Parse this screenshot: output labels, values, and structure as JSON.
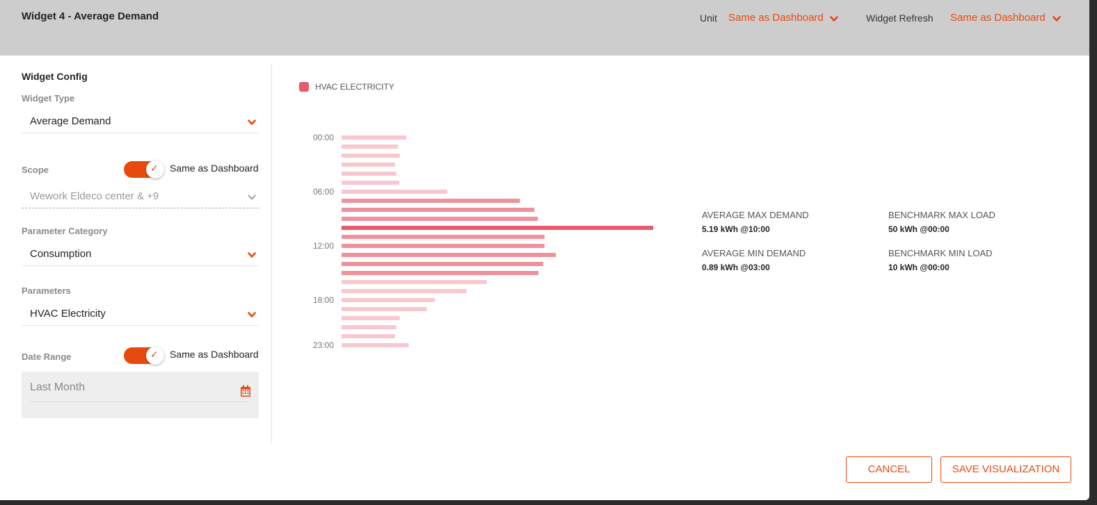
{
  "header": {
    "title": "Widget 4 - Average Demand",
    "unit_label": "Unit",
    "unit_value": "Same as Dashboard",
    "refresh_label": "Widget Refresh",
    "refresh_value": "Same as Dashboard"
  },
  "config": {
    "title": "Widget Config",
    "widget_type_label": "Widget Type",
    "widget_type_value": "Average Demand",
    "scope_label": "Scope",
    "scope_toggle_label": "Same as Dashboard",
    "scope_toggle_on": true,
    "scope_value": "Wework Eldeco center & +9",
    "parameter_category_label": "Parameter Category",
    "parameter_category_value": "Consumption",
    "parameters_label": "Parameters",
    "parameters_value": "HVAC Electricity",
    "date_range_label": "Date Range",
    "date_range_toggle_label": "Same as Dashboard",
    "date_range_toggle_on": true,
    "date_range_value": "Last Month"
  },
  "legend": {
    "label": "HVAC ELECTRICITY",
    "color": "#e85a6d"
  },
  "chart_data": {
    "type": "bar",
    "orientation": "horizontal",
    "categories": [
      "00:00",
      "01:00",
      "02:00",
      "03:00",
      "04:00",
      "05:00",
      "06:00",
      "07:00",
      "08:00",
      "09:00",
      "10:00",
      "11:00",
      "12:00",
      "13:00",
      "14:00",
      "15:00",
      "16:00",
      "17:00",
      "18:00",
      "19:00",
      "20:00",
      "21:00",
      "22:00",
      "23:00"
    ],
    "tick_labels": [
      "00:00",
      "06:00",
      "12:00",
      "18:00",
      "23:00"
    ],
    "values": [
      1.08,
      0.94,
      0.97,
      0.89,
      0.91,
      0.96,
      1.76,
      2.97,
      3.21,
      3.27,
      5.19,
      3.38,
      3.38,
      3.57,
      3.36,
      3.28,
      2.42,
      2.08,
      1.55,
      1.42,
      0.97,
      0.91,
      0.89,
      1.12
    ],
    "colors": {
      "low": "#f7c9cf",
      "mid": "#f0919e",
      "max": "#e85a6d"
    },
    "xlim": [
      0,
      5.19
    ]
  },
  "stats": {
    "avg_max_label": "AVERAGE MAX DEMAND",
    "avg_max_value": "5.19 kWh @10:00",
    "avg_min_label": "AVERAGE MIN DEMAND",
    "avg_min_value": "0.89 kWh @03:00",
    "bench_max_label": "BENCHMARK MAX LOAD",
    "bench_max_value": "50 kWh @00:00",
    "bench_min_label": "BENCHMARK MIN LOAD",
    "bench_min_value": "10 kWh @00:00"
  },
  "buttons": {
    "cancel": "CANCEL",
    "save": "SAVE VISUALIZATION"
  },
  "accent_color": "#e8490f"
}
